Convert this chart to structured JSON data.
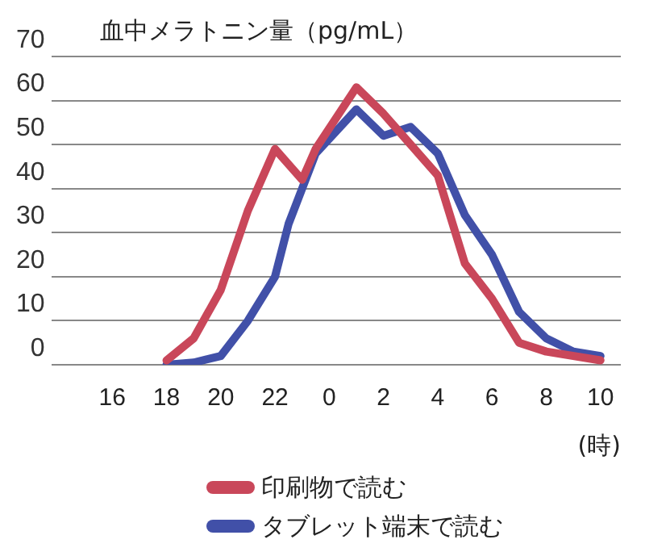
{
  "chart_data": {
    "type": "line",
    "title": "血中メラトニン量（pg/mL）",
    "xlabel": "(時)",
    "categories": [
      null,
      null,
      null,
      null,
      "16",
      null,
      null,
      null,
      "18",
      null,
      null,
      null,
      "20",
      null,
      null,
      null,
      "22",
      null,
      null,
      null,
      "0",
      null,
      null,
      null,
      "2",
      null,
      null,
      null,
      "4",
      null,
      null,
      null,
      "6",
      null,
      null,
      null,
      "8",
      null,
      null,
      null,
      "10",
      null
    ],
    "series": [
      {
        "name": "印刷物で読む",
        "color": "#c9475a",
        "values": [
          null,
          null,
          null,
          null,
          null,
          null,
          null,
          null,
          1,
          null,
          6,
          null,
          17,
          null,
          35,
          null,
          49,
          null,
          42,
          49,
          null,
          null,
          63,
          null,
          57,
          null,
          50,
          null,
          43,
          null,
          23,
          null,
          15,
          null,
          5,
          null,
          3,
          null,
          null,
          null,
          1,
          null
        ]
      },
      {
        "name": "タブレット端末で読む",
        "color": "#4150a8",
        "values": [
          null,
          null,
          null,
          null,
          null,
          null,
          null,
          null,
          0,
          null,
          0.5,
          null,
          2,
          null,
          10,
          null,
          20,
          32,
          null,
          48,
          null,
          null,
          58,
          null,
          52,
          null,
          54,
          null,
          48,
          null,
          34,
          null,
          25,
          null,
          12,
          null,
          6,
          null,
          3,
          null,
          2,
          null
        ]
      }
    ],
    "ylim": [
      0,
      70
    ],
    "yticks": [
      0,
      10,
      20,
      30,
      40,
      50,
      60,
      70
    ],
    "grid": "y",
    "legend": "bottom",
    "marker": "none",
    "line_style": "solid"
  }
}
